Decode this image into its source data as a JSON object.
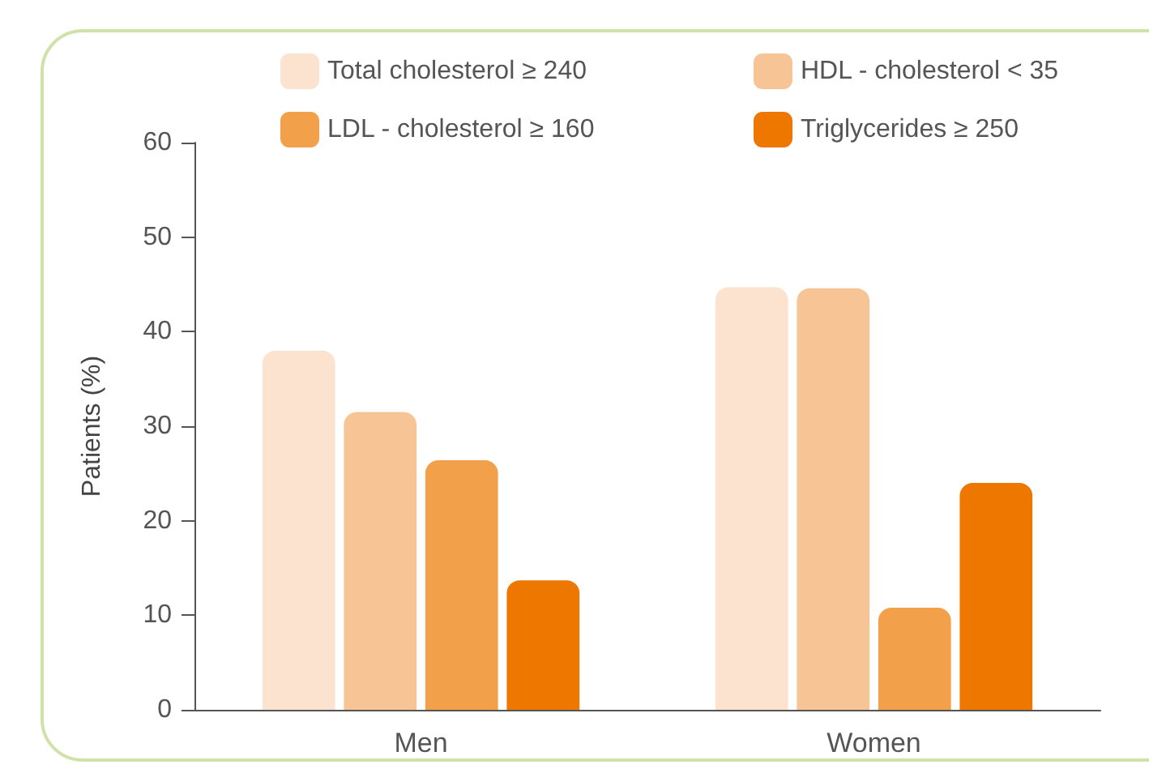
{
  "chart_data": {
    "type": "bar",
    "ylabel": "Patients (%)",
    "categories": [
      "Men",
      "Women"
    ],
    "series": [
      {
        "name": "Total cholesterol ≥ 240",
        "color": "#fbe3cf",
        "values": [
          38,
          44.7
        ]
      },
      {
        "name": "HDL - cholesterol < 35",
        "color": "#f7c496",
        "values": [
          31.5,
          44.6
        ]
      },
      {
        "name": "LDL - cholesterol ≥ 160",
        "color": "#f2a14a",
        "values": [
          26.4,
          10.8
        ]
      },
      {
        "name": "Triglycerides ≥ 250",
        "color": "#ee7700",
        "values": [
          13.7,
          24
        ]
      }
    ],
    "ylim": [
      0,
      60
    ],
    "yticks": [
      0,
      10,
      20,
      30,
      40,
      50,
      60
    ],
    "grid": false,
    "legend": "top"
  }
}
